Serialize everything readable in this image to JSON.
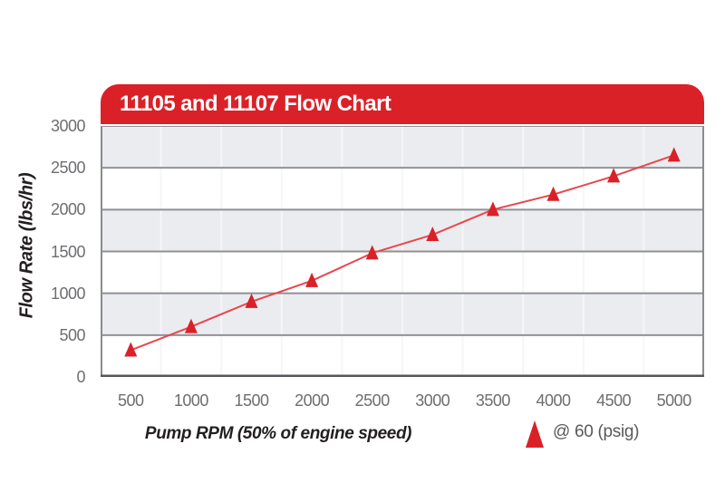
{
  "header": {
    "title": "11105 and 11107 Flow Chart"
  },
  "chart_data": {
    "type": "line",
    "title": "11105 and 11107 Flow Chart",
    "xlabel": "Pump RPM (50% of engine speed)",
    "ylabel": "Flow Rate (lbs/hr)",
    "categories": [
      500,
      1000,
      1500,
      2000,
      2500,
      3000,
      3500,
      4000,
      4500,
      5000
    ],
    "series": [
      {
        "name": "@ 60 (psig)",
        "marker": "triangle-up",
        "values": [
          320,
          600,
          900,
          1150,
          1480,
          1700,
          2000,
          2180,
          2400,
          2650
        ]
      }
    ],
    "ylim": [
      0,
      3000
    ],
    "yticks": [
      0,
      500,
      1000,
      1500,
      2000,
      2500,
      3000
    ],
    "grid": "horizontal gridlines every 500; faint vertical gridlines at category boundaries; alternating shaded bands",
    "legend_position": "bottom-right"
  },
  "legend": {
    "label": "@ 60 (psig)",
    "marker": "triangle-up-icon"
  },
  "colors": {
    "header_red": "#da2128",
    "marker_red": "#da2128",
    "line_red": "#e8474d",
    "band_gray": "#ebecf0",
    "band_white": "#ffffff",
    "grid_gray": "#909196",
    "vline_light": "#f6f6f9",
    "border_gray": "#8a8b8f",
    "axis_dark": "#55565a",
    "tick_text": "#6d6e71",
    "axis_title_text": "#231f20",
    "legend_text": "#58595b",
    "title_text": "#ffffff"
  }
}
